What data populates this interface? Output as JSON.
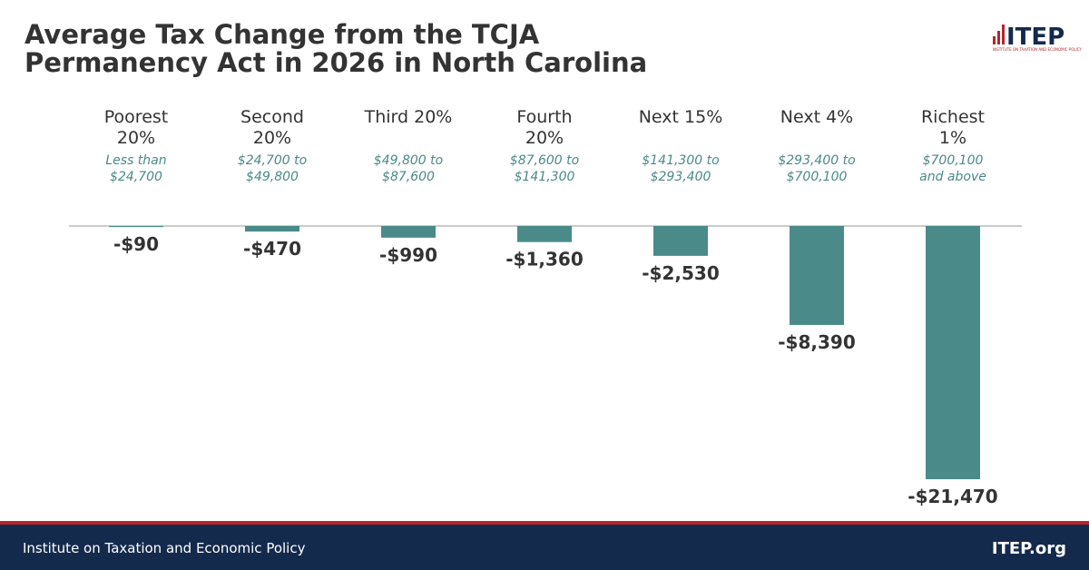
{
  "chart_data": {
    "type": "bar",
    "title": "Average Tax Change from the TCJA Permanency Act in 2026 in North Carolina",
    "categories": [
      "Poorest 20%",
      "Second 20%",
      "Third 20%",
      "Fourth 20%",
      "Next 15%",
      "Next 4%",
      "Richest 1%"
    ],
    "income_ranges": [
      "Less than $24,700",
      "$24,700 to $49,800",
      "$49,800 to $87,600",
      "$87,600 to $141,300",
      "$141,300 to $293,400",
      "$293,400 to $700,100",
      "$700,100 and above"
    ],
    "values": [
      -90,
      -470,
      -990,
      -1360,
      -2530,
      -8390,
      -21470
    ],
    "value_labels": [
      "-$90",
      "-$470",
      "-$990",
      "-$1,360",
      "-$2,530",
      "-$8,390",
      "-$21,470"
    ],
    "color": "#4a8b89"
  },
  "logo": {
    "text": "ITEP",
    "subtext": "INSTITUTE ON TAXATION AND ECONOMIC POLICY"
  },
  "footer": {
    "left": "Institute on Taxation and Economic Policy",
    "right": "ITEP.org"
  }
}
